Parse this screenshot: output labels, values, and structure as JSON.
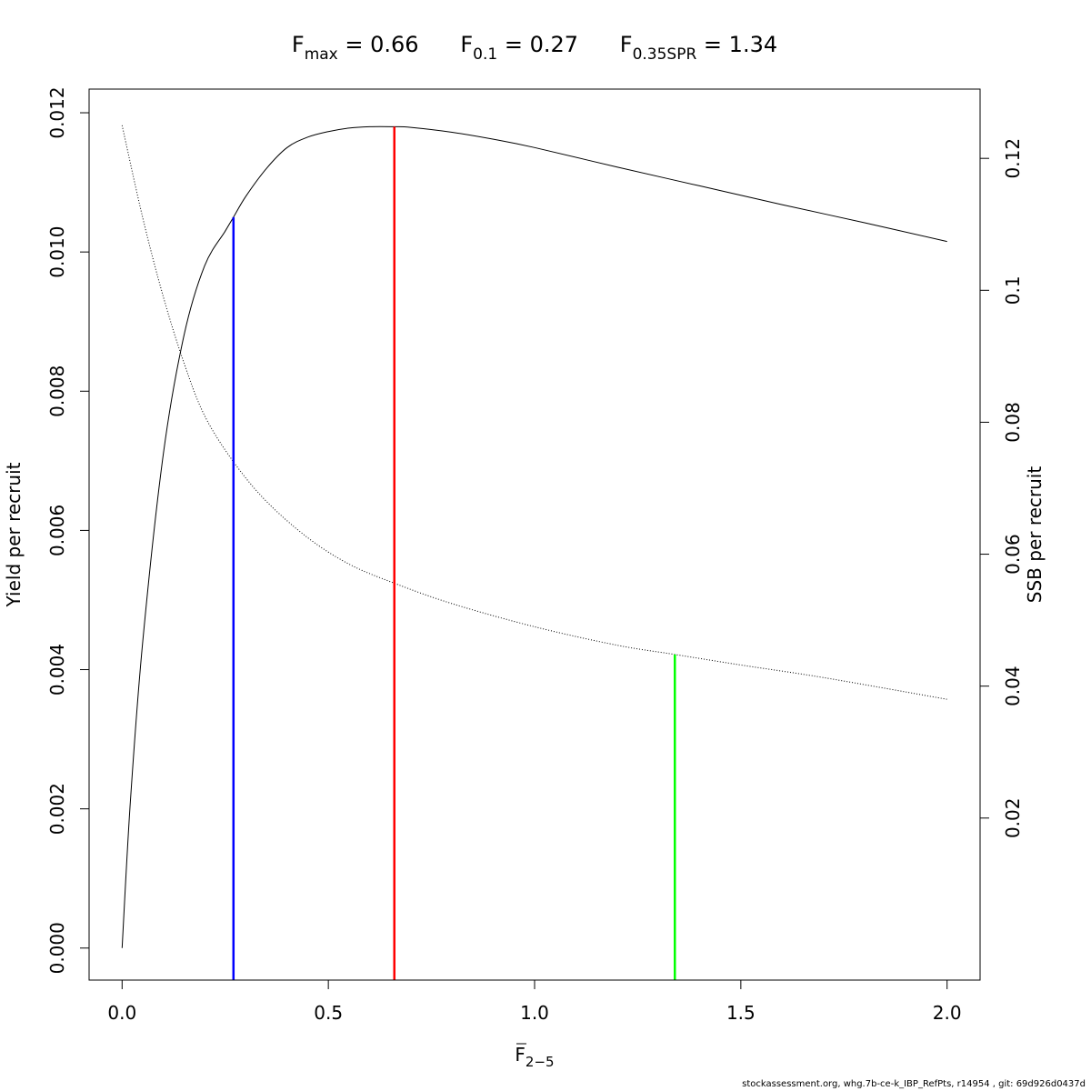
{
  "chart_data": {
    "type": "line",
    "title": {
      "fmax_label": "max",
      "fmax_value": "0.66",
      "f01_label": "0.1",
      "f01_value": "0.27",
      "fspr_label": "0.35SPR",
      "fspr_value": "1.34"
    },
    "xlabel": {
      "main": "F",
      "sub": "2−5"
    },
    "ylabel_left": "Yield per recruit",
    "ylabel_right": "SSB per recruit",
    "xlim": [
      -0.08,
      2.08
    ],
    "ylim_left": [
      -0.00046,
      0.01234
    ],
    "ylim_right": [
      -0.00456,
      0.1305
    ],
    "x_ticks": [
      "0.0",
      "0.5",
      "1.0",
      "1.5",
      "2.0"
    ],
    "y_left_ticks": [
      "0.000",
      "0.002",
      "0.004",
      "0.006",
      "0.008",
      "0.010",
      "0.012"
    ],
    "y_right_ticks": [
      "0.02",
      "0.04",
      "0.06",
      "0.08",
      "0.1",
      "0.12"
    ],
    "grid": false,
    "series": [
      {
        "axis": "left",
        "style": "solid",
        "color": "#000000",
        "x": [
          0,
          0.02,
          0.05,
          0.1,
          0.15,
          0.2,
          0.25,
          0.27,
          0.3,
          0.35,
          0.4,
          0.45,
          0.5,
          0.55,
          0.6,
          0.66,
          0.7,
          0.8,
          0.9,
          1.0,
          1.2,
          1.4,
          1.6,
          1.8,
          2.0
        ],
        "y": [
          0,
          0.0021,
          0.0044,
          0.0071,
          0.0088,
          0.0098,
          0.0103,
          0.0105,
          0.0108,
          0.0112,
          0.0115,
          0.01165,
          0.01173,
          0.01178,
          0.0118,
          0.0118,
          0.01179,
          0.01172,
          0.01162,
          0.0115,
          0.01122,
          0.01095,
          0.01068,
          0.01042,
          0.01015
        ]
      },
      {
        "axis": "right",
        "style": "dotted",
        "color": "#000000",
        "x": [
          0,
          0.05,
          0.1,
          0.15,
          0.2,
          0.27,
          0.35,
          0.45,
          0.55,
          0.66,
          0.8,
          1.0,
          1.2,
          1.34,
          1.5,
          1.7,
          2.0
        ],
        "y": [
          0.125,
          0.111,
          0.099,
          0.089,
          0.081,
          0.074,
          0.068,
          0.0625,
          0.0585,
          0.0556,
          0.0525,
          0.049,
          0.0462,
          0.0448,
          0.0432,
          0.0413,
          0.038
        ]
      }
    ],
    "reference_lines": [
      {
        "x": 0.27,
        "y_left_top": 0.0105,
        "color": "#0000ff"
      },
      {
        "x": 0.66,
        "y_left_top": 0.0118,
        "color": "#ff0000"
      },
      {
        "x": 1.34,
        "y_right_top": 0.0448,
        "color": "#00ff00"
      }
    ]
  },
  "footer_text": "stockassessment.org, whg.7b-ce-k_IBP_RefPts, r14954 , git: 69d926d0437d"
}
